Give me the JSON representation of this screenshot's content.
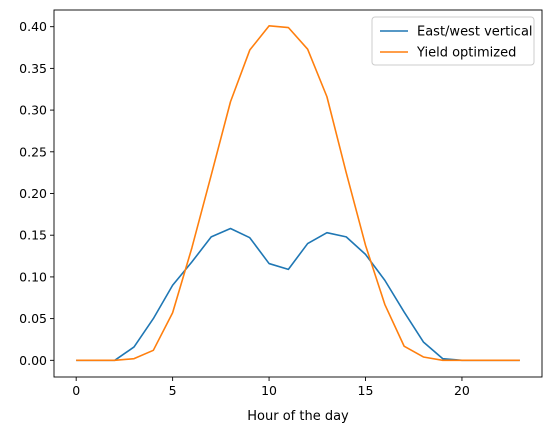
{
  "chart_data": {
    "type": "line",
    "title": "",
    "xlabel": "Hour of the day",
    "ylabel": "",
    "xlim": [
      -1.15,
      24.15
    ],
    "ylim": [
      -0.02,
      0.42
    ],
    "xticks": [
      0,
      5,
      10,
      15,
      20
    ],
    "xtick_labels": [
      "0",
      "5",
      "10",
      "15",
      "20"
    ],
    "yticks": [
      0.0,
      0.05,
      0.1,
      0.15,
      0.2,
      0.25,
      0.3,
      0.35,
      0.4
    ],
    "ytick_labels": [
      "0.00",
      "0.05",
      "0.10",
      "0.15",
      "0.20",
      "0.25",
      "0.30",
      "0.35",
      "0.40"
    ],
    "grid": false,
    "legend_position": "top-right",
    "x": [
      0,
      1,
      2,
      3,
      4,
      5,
      6,
      7,
      8,
      9,
      10,
      11,
      12,
      13,
      14,
      15,
      16,
      17,
      18,
      19,
      20,
      21,
      22,
      23
    ],
    "series": [
      {
        "name": "East/west vertical",
        "color": "#1f77b4",
        "values": [
          0.0,
          0.0,
          0.0,
          0.016,
          0.05,
          0.09,
          0.118,
          0.148,
          0.158,
          0.147,
          0.116,
          0.109,
          0.14,
          0.153,
          0.148,
          0.127,
          0.096,
          0.058,
          0.022,
          0.002,
          0.0,
          0.0,
          0.0,
          0.0
        ]
      },
      {
        "name": "Yield optimized",
        "color": "#ff7f0e",
        "values": [
          0.0,
          0.0,
          0.0,
          0.002,
          0.012,
          0.057,
          0.135,
          0.222,
          0.31,
          0.372,
          0.401,
          0.399,
          0.373,
          0.316,
          0.225,
          0.138,
          0.067,
          0.017,
          0.004,
          0.0,
          0.0,
          0.0,
          0.0,
          0.0
        ]
      }
    ]
  }
}
